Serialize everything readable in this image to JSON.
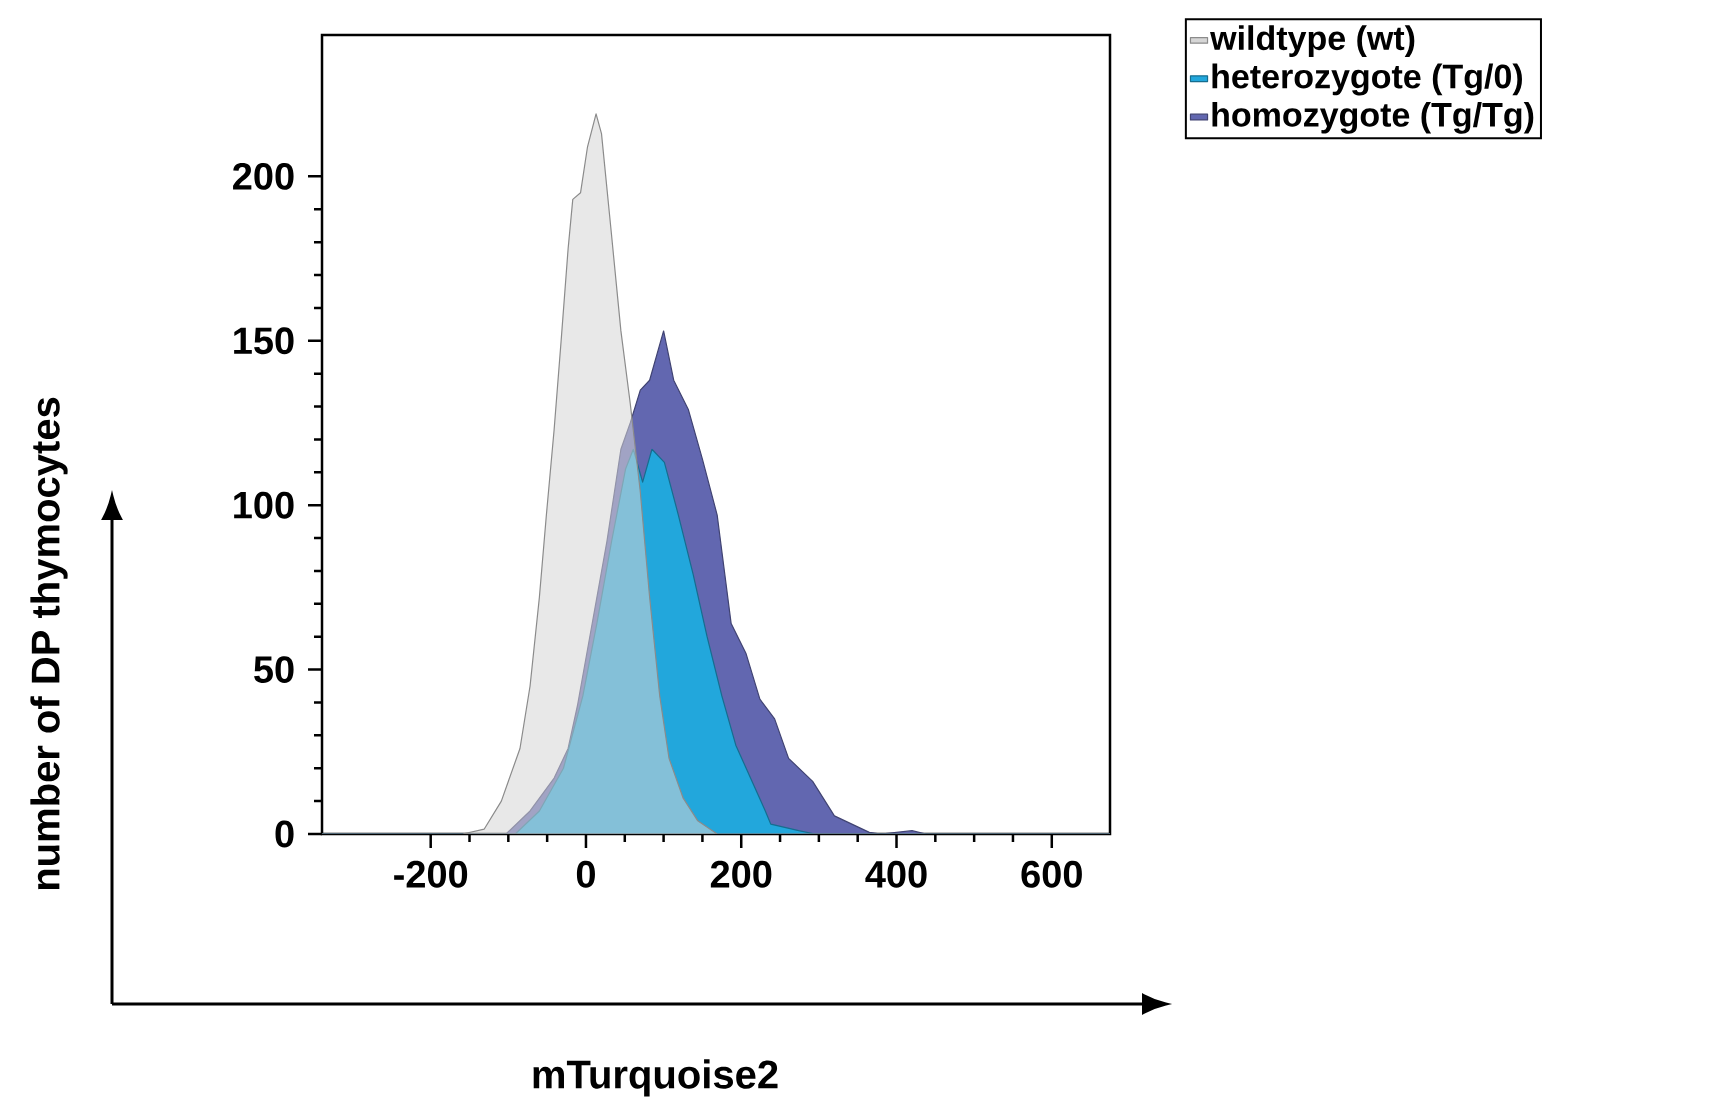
{
  "chart_data": {
    "type": "area",
    "xlabel": "mTurquoise2",
    "ylabel": "number of DP thymocytes",
    "xlim": [
      -340,
      675
    ],
    "ylim": [
      0,
      243
    ],
    "xticks": [
      -200,
      0,
      200,
      400,
      600
    ],
    "yticks": [
      0,
      50,
      100,
      150,
      200
    ],
    "legend": "top right",
    "series": [
      {
        "name": "wildtype (wt)",
        "color": "#d6d6d6",
        "x": [
          -340,
          -159,
          -131,
          -109,
          -85,
          -72,
          -60,
          -51,
          -41,
          -32,
          -23,
          -17,
          -7,
          2,
          13,
          20,
          33,
          45,
          57,
          70,
          82,
          95,
          107,
          125,
          144,
          169,
          675
        ],
        "values": [
          0,
          0,
          1.5,
          10,
          26,
          45,
          72,
          97,
          123,
          150,
          178,
          193,
          195,
          209,
          219,
          213,
          182,
          153,
          131,
          104,
          72,
          42,
          23,
          11,
          4,
          0,
          0
        ]
      },
      {
        "name": "heterozygote (Tg/0)",
        "color": "#22a7dc",
        "x": [
          -340,
          -91,
          -60,
          -29,
          -4,
          14,
          33,
          51,
          61,
          73,
          85,
          101,
          119,
          138,
          156,
          175,
          193,
          212,
          231,
          238,
          274,
          295,
          675
        ],
        "values": [
          0,
          0,
          7,
          20,
          42,
          64,
          89,
          111,
          117,
          107,
          117,
          113,
          97,
          79,
          60,
          42,
          27,
          17,
          7,
          3,
          1,
          0,
          0
        ]
      },
      {
        "name": "homozygote (Tg/Tg)",
        "color": "#6267b0",
        "x": [
          -340,
          -103,
          -72,
          -41,
          -23,
          -11,
          8,
          27,
          45,
          57,
          70,
          82,
          100,
          113,
          132,
          150,
          169,
          187,
          206,
          224,
          243,
          261,
          292,
          320,
          365,
          380,
          420,
          438,
          675
        ],
        "values": [
          0,
          0,
          7,
          17,
          26,
          39,
          64,
          89,
          117,
          125,
          135,
          138,
          153,
          138,
          129,
          114,
          97,
          64,
          55,
          41,
          35,
          23,
          16,
          5.5,
          0.5,
          0,
          1,
          0,
          0
        ]
      }
    ]
  }
}
